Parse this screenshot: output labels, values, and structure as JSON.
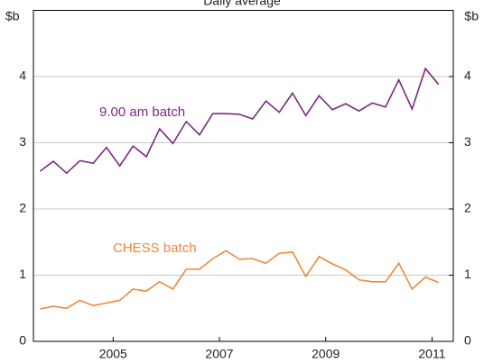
{
  "chart_data": {
    "type": "line",
    "title": "Daily average",
    "ylabel": "$b",
    "y2label": "$b",
    "x": [
      2003.625,
      2003.875,
      2004.125,
      2004.375,
      2004.625,
      2004.875,
      2005.125,
      2005.375,
      2005.625,
      2005.875,
      2006.125,
      2006.375,
      2006.625,
      2006.875,
      2007.125,
      2007.375,
      2007.625,
      2007.875,
      2008.125,
      2008.375,
      2008.625,
      2008.875,
      2009.125,
      2009.375,
      2009.625,
      2009.875,
      2010.125,
      2010.375,
      2010.625,
      2010.875,
      2011.125
    ],
    "series": [
      {
        "name": "9.00 am batch",
        "color": "#7b2a83",
        "values": [
          2.57,
          2.72,
          2.54,
          2.73,
          2.69,
          2.93,
          2.65,
          2.95,
          2.79,
          3.21,
          2.99,
          3.32,
          3.12,
          3.44,
          3.44,
          3.43,
          3.36,
          3.63,
          3.46,
          3.75,
          3.41,
          3.71,
          3.5,
          3.59,
          3.48,
          3.6,
          3.54,
          3.95,
          3.51,
          4.12,
          3.88
        ]
      },
      {
        "name": "CHESS batch",
        "color": "#f0873a",
        "values": [
          0.49,
          0.53,
          0.5,
          0.62,
          0.54,
          0.58,
          0.62,
          0.79,
          0.76,
          0.9,
          0.79,
          1.09,
          1.09,
          1.25,
          1.37,
          1.24,
          1.25,
          1.18,
          1.33,
          1.35,
          0.98,
          1.28,
          1.17,
          1.08,
          0.93,
          0.9,
          0.9,
          1.18,
          0.79,
          0.97,
          0.89
        ]
      }
    ],
    "xlim": [
      2003.5,
      2011.4
    ],
    "xticks": [
      2005,
      2007,
      2009,
      2011
    ],
    "ylim": [
      0,
      5
    ],
    "yticks": [
      0,
      1,
      2,
      3,
      4
    ],
    "y2lim": [
      0,
      5
    ],
    "y2ticks": [
      0,
      1,
      2,
      3,
      4
    ],
    "grid": true
  }
}
